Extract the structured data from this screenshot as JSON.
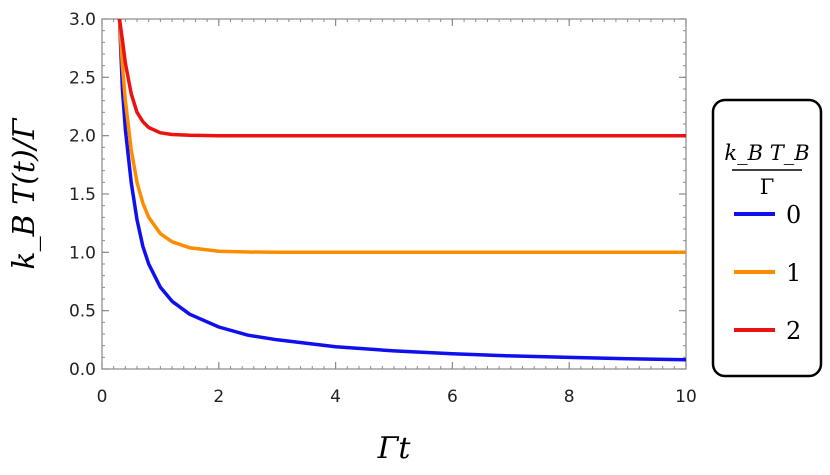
{
  "chart_data": {
    "type": "line",
    "xlabel": "Γt",
    "ylabel": "k_B T(t)/Γ",
    "xlim": [
      0,
      10
    ],
    "ylim": [
      0,
      3
    ],
    "x_ticks": [
      0,
      2,
      4,
      6,
      8,
      10
    ],
    "x_tick_labels": [
      "0",
      "2",
      "4",
      "6",
      "8",
      "10"
    ],
    "y_ticks": [
      0,
      0.5,
      1,
      1.5,
      2,
      2.5,
      3
    ],
    "y_tick_labels": [
      "0.0",
      "0.5",
      "1.0",
      "1.5",
      "2.0",
      "2.5",
      "3.0"
    ],
    "grid": false,
    "legend": {
      "placement": "right",
      "title_numerator": "k_B T_B",
      "title_denominator": "Γ"
    },
    "series": [
      {
        "name": "0",
        "color": "#1010ee",
        "x": [
          0.3,
          0.35,
          0.4,
          0.5,
          0.6,
          0.7,
          0.8,
          1.0,
          1.2,
          1.5,
          2,
          2.5,
          3,
          4,
          5,
          6,
          7,
          8,
          9,
          10
        ],
        "y": [
          3.0,
          2.4,
          2.05,
          1.6,
          1.28,
          1.05,
          0.9,
          0.7,
          0.58,
          0.47,
          0.36,
          0.29,
          0.25,
          0.19,
          0.155,
          0.13,
          0.112,
          0.099,
          0.088,
          0.08
        ]
      },
      {
        "name": "1",
        "color": "#ff8c00",
        "x": [
          0.3,
          0.35,
          0.4,
          0.5,
          0.6,
          0.7,
          0.8,
          1.0,
          1.2,
          1.5,
          2,
          2.5,
          3,
          4,
          5,
          6,
          7,
          8,
          9,
          10
        ],
        "y": [
          3.0,
          2.6,
          2.3,
          1.88,
          1.6,
          1.42,
          1.3,
          1.16,
          1.09,
          1.04,
          1.01,
          1.003,
          1.0,
          1.0,
          1.0,
          1.0,
          1.0,
          1.0,
          1.0,
          1.0
        ]
      },
      {
        "name": "2",
        "color": "#ee1111",
        "x": [
          0.3,
          0.35,
          0.4,
          0.5,
          0.6,
          0.7,
          0.8,
          1.0,
          1.2,
          1.5,
          2,
          2.5,
          3,
          4,
          5,
          6,
          7,
          8,
          9,
          10
        ],
        "y": [
          3.0,
          2.82,
          2.62,
          2.36,
          2.2,
          2.12,
          2.07,
          2.025,
          2.01,
          2.003,
          2.0,
          2.0,
          2.0,
          2.0,
          2.0,
          2.0,
          2.0,
          2.0,
          2.0,
          2.0
        ]
      }
    ]
  }
}
